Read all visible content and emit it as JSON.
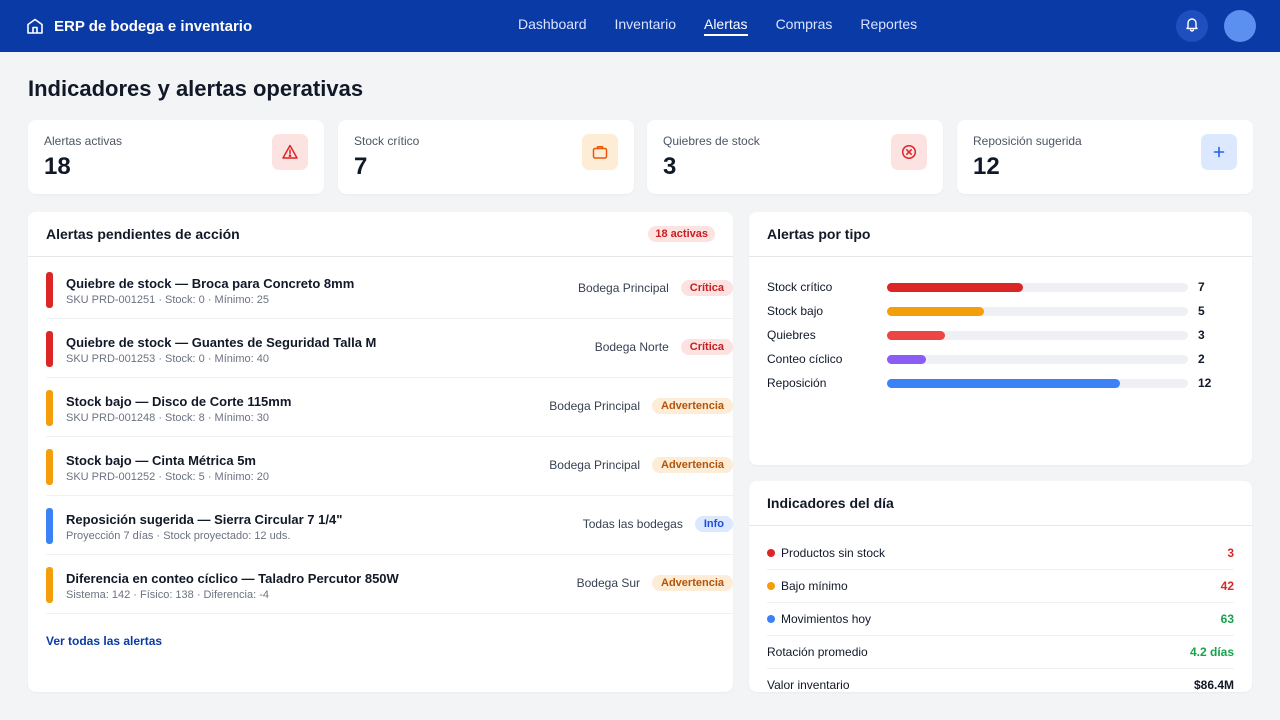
{
  "app": {
    "title": "ERP de bodega e inventario"
  },
  "nav": [
    {
      "label": "Dashboard",
      "active": false
    },
    {
      "label": "Inventario",
      "active": false
    },
    {
      "label": "Alertas",
      "active": true
    },
    {
      "label": "Compras",
      "active": false
    },
    {
      "label": "Reportes",
      "active": false
    }
  ],
  "page": {
    "title": "Indicadores y alertas operativas"
  },
  "kpis": [
    {
      "label": "Alertas activas",
      "value": "18",
      "icon": "warning-triangle-icon",
      "bg": "#fde2e2",
      "fg": "#dc2626"
    },
    {
      "label": "Stock crítico",
      "value": "7",
      "icon": "briefcase-icon",
      "bg": "#fdecd6",
      "fg": "#ea580c"
    },
    {
      "label": "Quiebres de stock",
      "value": "3",
      "icon": "circle-x-icon",
      "bg": "#fde2e2",
      "fg": "#dc2626"
    },
    {
      "label": "Reposición sugerida",
      "value": "12",
      "icon": "plus-icon",
      "bg": "#dbe8fd",
      "fg": "#2563eb"
    }
  ],
  "alerts_panel": {
    "title": "Alertas pendientes de acción",
    "badge": "18 activas",
    "see_all": "Ver todas las alertas",
    "items": [
      {
        "title": "Quiebre de stock — Broca para Concreto 8mm",
        "sub": "SKU PRD-001251 · Stock: 0 · Mínimo: 25",
        "location": "Bodega Principal",
        "severity": "Crítica",
        "sev_class": "crit",
        "color": "#dc2626"
      },
      {
        "title": "Quiebre de stock — Guantes de Seguridad Talla M",
        "sub": "SKU PRD-001253 · Stock: 0 · Mínimo: 40",
        "location": "Bodega Norte",
        "severity": "Crítica",
        "sev_class": "crit",
        "color": "#dc2626"
      },
      {
        "title": "Stock bajo — Disco de Corte 115mm",
        "sub": "SKU PRD-001248 · Stock: 8 · Mínimo: 30",
        "location": "Bodega Principal",
        "severity": "Advertencia",
        "sev_class": "warn",
        "color": "#f59e0b"
      },
      {
        "title": "Stock bajo — Cinta Métrica 5m",
        "sub": "SKU PRD-001252 · Stock: 5 · Mínimo: 20",
        "location": "Bodega Principal",
        "severity": "Advertencia",
        "sev_class": "warn",
        "color": "#f59e0b"
      },
      {
        "title": "Reposición sugerida — Sierra Circular 7 1/4\"",
        "sub": "Proyección 7 días · Stock proyectado: 12 uds.",
        "location": "Todas las bodegas",
        "severity": "Info",
        "sev_class": "info",
        "color": "#3b82f6"
      },
      {
        "title": "Diferencia en conteo cíclico — Taladro Percutor 850W",
        "sub": "Sistema: 142 · Físico: 138 · Diferencia: -4",
        "location": "Bodega Sur",
        "severity": "Advertencia",
        "sev_class": "warn",
        "color": "#f59e0b"
      }
    ]
  },
  "types_panel": {
    "title": "Alertas por tipo",
    "scale_max": 15.5,
    "items": [
      {
        "label": "Stock crítico",
        "value": 7,
        "color": "#dc2626"
      },
      {
        "label": "Stock bajo",
        "value": 5,
        "color": "#f59e0b"
      },
      {
        "label": "Quiebres",
        "value": 3,
        "color": "#ef4444"
      },
      {
        "label": "Conteo cíclico",
        "value": 2,
        "color": "#8b5cf6"
      },
      {
        "label": "Reposición",
        "value": 12,
        "color": "#3b82f6"
      }
    ]
  },
  "day_panel": {
    "title": "Indicadores del día",
    "items": [
      {
        "label": "Productos sin stock",
        "value": "3",
        "dot": "#dc2626",
        "value_color": "#dc2626"
      },
      {
        "label": "Bajo mínimo",
        "value": "42",
        "dot": "#f59e0b",
        "value_color": "#dc2626"
      },
      {
        "label": "Movimientos hoy",
        "value": "63",
        "dot": "#3b82f6",
        "value_color": "#16a34a"
      },
      {
        "label": "Rotación promedio",
        "value": "4.2 días",
        "dot": "",
        "value_color": "#16a34a"
      },
      {
        "label": "Valor inventario",
        "value": "$86.4M",
        "dot": "",
        "value_color": "#111827"
      }
    ]
  }
}
